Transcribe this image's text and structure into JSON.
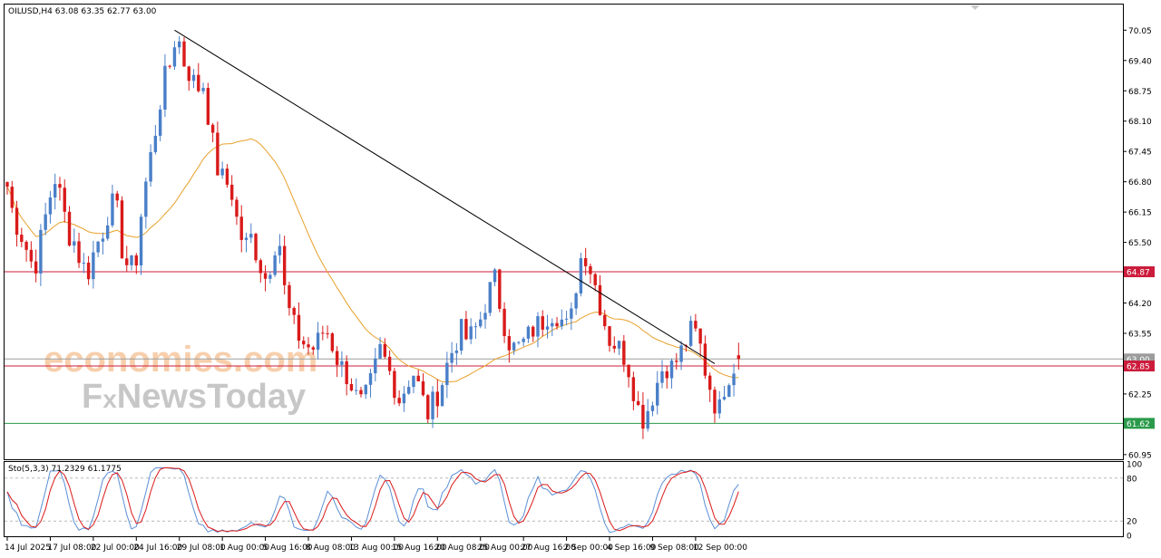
{
  "header": {
    "symbol_info": "OILUSD,H4  63.08 63.35 62.77 63.00",
    "indicator_info": "Sto(5,3,3) 71.2329 61.1775"
  },
  "watermark": {
    "line1": "economies.com",
    "line2_prefix": "F",
    "line2_x": "x",
    "line2_rest": "NewsToday"
  },
  "colors": {
    "bull": "#4a7fc8",
    "bear": "#d91a1a",
    "ma": "#e8a02a",
    "resistance": "#cc1c3c",
    "support": "#2a9a4a",
    "trendline": "#000000",
    "stoch_main": "#5b8fd6",
    "stoch_signal": "#d91a1a"
  },
  "chart_data": [
    {
      "type": "candlestick",
      "symbol": "OILUSD",
      "timeframe": "H4",
      "last_ohlc": {
        "open": 63.08,
        "high": 63.35,
        "low": 62.77,
        "close": 63.0
      },
      "y_ticks": [
        "70.05",
        "69.40",
        "68.75",
        "68.10",
        "67.45",
        "66.80",
        "66.15",
        "65.50",
        "64.20",
        "63.55",
        "62.25",
        "60.95"
      ],
      "ylim": [
        60.85,
        70.6
      ],
      "x_ticks": [
        "14 Jul 2025",
        "17 Jul 08:00",
        "22 Jul 00:00",
        "24 Jul 16:00",
        "29 Jul 08:00",
        "1 Aug 00:00",
        "5 Aug 16:00",
        "8 Aug 08:00",
        "13 Aug 00:00",
        "15 Aug 16:00",
        "20 Aug 08:00",
        "25 Aug 00:00",
        "27 Aug 16:00",
        "2 Sep 00:00",
        "4 Sep 16:00",
        "9 Sep 08:00",
        "12 Sep 00:00"
      ],
      "close_path": [
        66.7,
        66.0,
        65.7,
        65.3,
        64.9,
        65.6,
        66.3,
        66.9,
        66.4,
        65.7,
        65.5,
        65.0,
        64.9,
        65.4,
        65.7,
        66.2,
        66.4,
        65.3,
        64.9,
        65.1,
        66.4,
        67.2,
        68.0,
        68.9,
        69.3,
        70.05,
        69.4,
        69.1,
        68.8,
        68.9,
        67.9,
        67.1,
        66.8,
        66.7,
        65.9,
        65.4,
        65.6,
        65.2,
        64.7,
        65.1,
        65.8,
        64.4,
        63.8,
        63.5,
        63.3,
        63.2,
        63.4,
        63.7,
        63.3,
        62.9,
        62.7,
        62.4,
        62.0,
        62.2,
        62.6,
        63.2,
        62.9,
        62.5,
        62.1,
        62.5,
        62.7,
        62.3,
        61.8,
        62.1,
        62.4,
        62.9,
        63.3,
        63.6,
        63.4,
        63.6,
        63.9,
        64.4,
        64.7,
        64.0,
        63.4,
        63.2,
        63.3,
        63.5,
        63.7,
        63.8,
        64.0,
        64.0,
        63.8,
        63.6,
        64.6,
        65.4,
        65.0,
        64.5,
        63.9,
        63.4,
        63.3,
        63.1,
        62.7,
        62.0,
        61.7,
        62.1,
        62.5,
        62.9,
        62.8,
        63.0,
        63.3,
        63.6,
        63.5,
        62.8,
        62.3,
        61.8,
        62.5,
        62.8,
        63.0
      ],
      "moving_average": "orange line",
      "horizontal_levels": [
        {
          "value": 64.87,
          "label": "64.87",
          "color": "#cc1c3c"
        },
        {
          "value": 63.0,
          "label": "63.00",
          "color": "#9c9c9c"
        },
        {
          "value": 62.85,
          "label": "62.85",
          "color": "#cc1c3c"
        },
        {
          "value": 61.62,
          "label": "61.62",
          "color": "#2a9a4a"
        }
      ],
      "trendline": {
        "from": {
          "x_index": 35,
          "y": 70.05
        },
        "to": {
          "x_index": 148,
          "y": 62.9
        }
      }
    },
    {
      "type": "line",
      "indicator": "Sto(5,3,3)",
      "main": 71.2329,
      "signal": 61.1775,
      "y_ticks": [
        "100",
        "80",
        "20",
        "0"
      ],
      "ylim": [
        0,
        100
      ],
      "levels": [
        80,
        20
      ]
    }
  ]
}
